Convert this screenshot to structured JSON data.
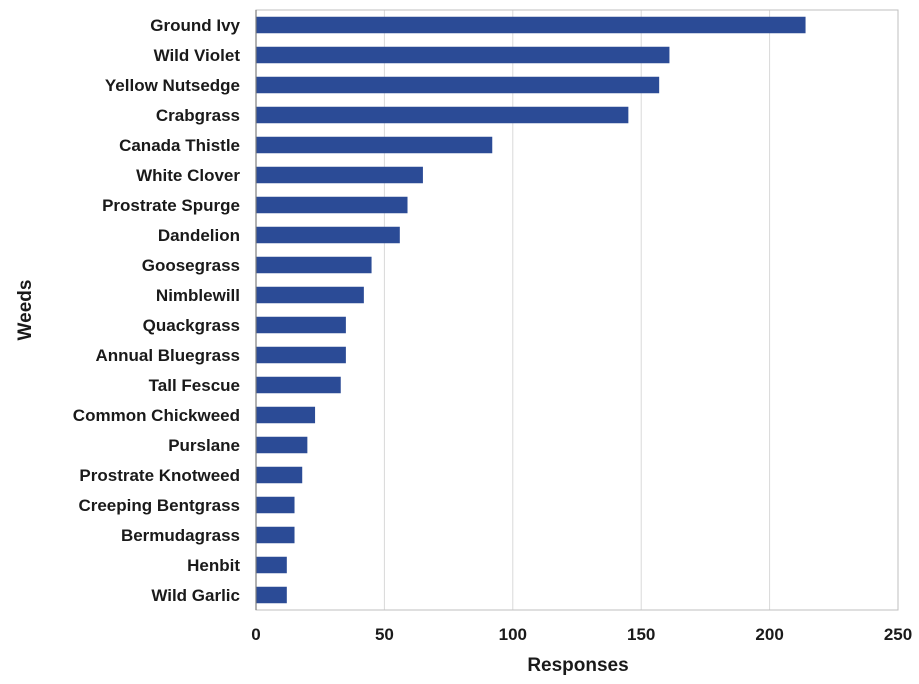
{
  "chart_data": {
    "type": "bar",
    "orientation": "horizontal",
    "categories": [
      "Ground Ivy",
      "Wild Violet",
      "Yellow Nutsedge",
      "Crabgrass",
      "Canada Thistle",
      "White Clover",
      "Prostrate Spurge",
      "Dandelion",
      "Goosegrass",
      "Nimblewill",
      "Quackgrass",
      "Annual Bluegrass",
      "Tall Fescue",
      "Common Chickweed",
      "Purslane",
      "Prostrate Knotweed",
      "Creeping Bentgrass",
      "Bermudagrass",
      "Henbit",
      "Wild Garlic"
    ],
    "values": [
      214,
      161,
      157,
      145,
      92,
      65,
      59,
      56,
      45,
      42,
      35,
      35,
      33,
      23,
      20,
      18,
      15,
      15,
      12,
      12
    ],
    "xlabel": "Responses",
    "ylabel": "Weeds",
    "xlim": [
      0,
      250
    ],
    "xticks": [
      0,
      50,
      100,
      150,
      200,
      250
    ],
    "bar_color": "#2b4b96",
    "grid": "vertical",
    "legend": "none"
  }
}
